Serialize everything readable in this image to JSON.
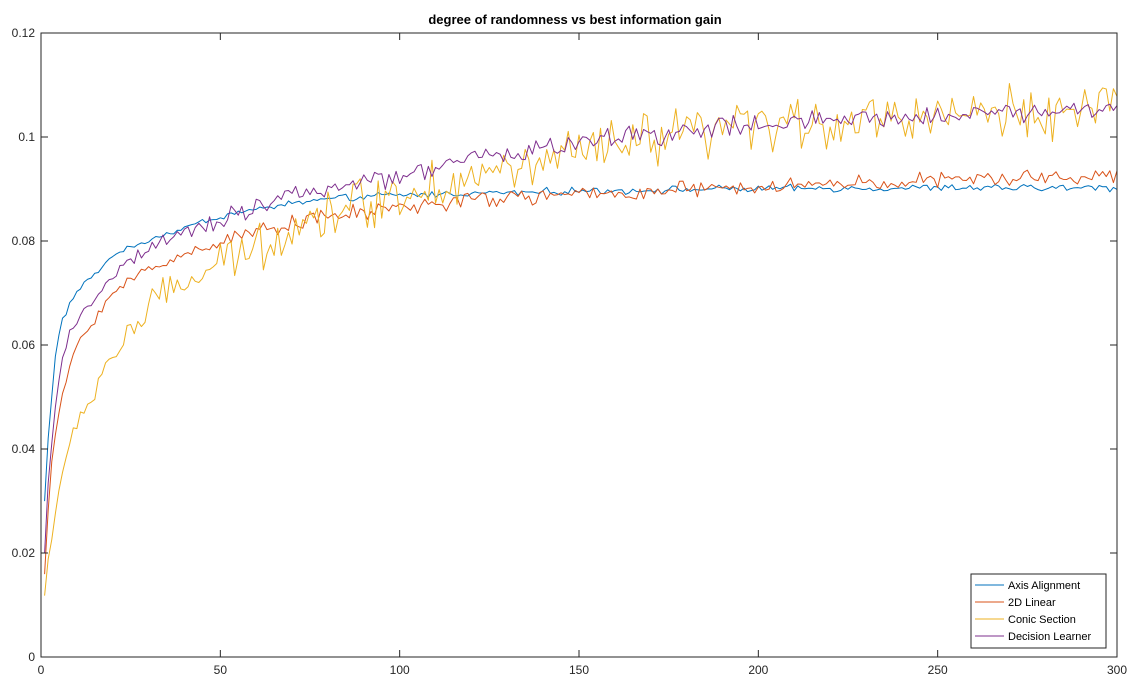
{
  "chart_data": {
    "type": "line",
    "title": "degree of randomness vs best information gain",
    "xlabel": "",
    "ylabel": "",
    "xlim": [
      0,
      300
    ],
    "ylim": [
      0,
      0.12
    ],
    "xticks": [
      0,
      50,
      100,
      150,
      200,
      250,
      300
    ],
    "yticks": [
      0,
      0.02,
      0.04,
      0.06,
      0.08,
      0.1,
      0.12
    ],
    "xtick_labels": [
      "0",
      "50",
      "100",
      "150",
      "200",
      "250",
      "300"
    ],
    "ytick_labels": [
      "0",
      "0.02",
      "0.04",
      "0.06",
      "0.08",
      "0.1",
      "0.12"
    ],
    "grid": false,
    "legend_position": "bottom-right",
    "series": [
      {
        "name": "Axis Alignment",
        "color": "#0072BD",
        "x": [
          1,
          2,
          3,
          4,
          5,
          6,
          7,
          8,
          9,
          10,
          12,
          14,
          16,
          18,
          20,
          22,
          24,
          26,
          28,
          30,
          32,
          34,
          36,
          38,
          40,
          42,
          44,
          46,
          48,
          50,
          55,
          60,
          65,
          70,
          75,
          80,
          85,
          90,
          95,
          100,
          110,
          120,
          130,
          140,
          150,
          160,
          170,
          180,
          190,
          200,
          210,
          220,
          230,
          240,
          250,
          260,
          270,
          280,
          290,
          300
        ],
        "y": [
          0.03,
          0.042,
          0.05,
          0.058,
          0.062,
          0.065,
          0.066,
          0.068,
          0.069,
          0.07,
          0.072,
          0.073,
          0.074,
          0.076,
          0.077,
          0.078,
          0.0785,
          0.079,
          0.0795,
          0.08,
          0.081,
          0.081,
          0.0815,
          0.082,
          0.0825,
          0.083,
          0.0835,
          0.084,
          0.0843,
          0.0846,
          0.0855,
          0.086,
          0.0867,
          0.0872,
          0.0877,
          0.088,
          0.0882,
          0.0885,
          0.0887,
          0.0888,
          0.089,
          0.0892,
          0.0893,
          0.0895,
          0.0896,
          0.0897,
          0.0898,
          0.0899,
          0.09,
          0.09,
          0.0901,
          0.0901,
          0.0901,
          0.0902,
          0.0902,
          0.0902,
          0.0902,
          0.0902,
          0.0902,
          0.0902
        ],
        "jitter": 0.0006
      },
      {
        "name": "2D Linear",
        "color": "#D95319",
        "x": [
          1,
          2,
          3,
          4,
          5,
          6,
          7,
          8,
          9,
          10,
          12,
          14,
          16,
          18,
          20,
          22,
          24,
          26,
          28,
          30,
          32,
          34,
          36,
          38,
          40,
          42,
          44,
          46,
          48,
          50,
          55,
          60,
          65,
          70,
          75,
          80,
          85,
          90,
          95,
          100,
          110,
          120,
          130,
          140,
          150,
          160,
          170,
          180,
          190,
          200,
          210,
          220,
          230,
          240,
          250,
          260,
          270,
          280,
          290,
          300
        ],
        "y": [
          0.016,
          0.028,
          0.037,
          0.043,
          0.047,
          0.05,
          0.053,
          0.056,
          0.058,
          0.06,
          0.062,
          0.064,
          0.066,
          0.068,
          0.07,
          0.071,
          0.072,
          0.073,
          0.074,
          0.0745,
          0.075,
          0.0755,
          0.076,
          0.077,
          0.0775,
          0.078,
          0.0785,
          0.079,
          0.0795,
          0.08,
          0.081,
          0.082,
          0.0828,
          0.0835,
          0.084,
          0.0845,
          0.085,
          0.0855,
          0.086,
          0.0865,
          0.0872,
          0.0878,
          0.0882,
          0.0886,
          0.0889,
          0.0892,
          0.0895,
          0.0898,
          0.09,
          0.0903,
          0.0906,
          0.0909,
          0.0912,
          0.0914,
          0.0916,
          0.0918,
          0.092,
          0.0922,
          0.0924,
          0.0925
        ],
        "jitter": 0.0014
      },
      {
        "name": "Conic Section",
        "color": "#EDB120",
        "x": [
          1,
          2,
          3,
          4,
          5,
          6,
          7,
          8,
          9,
          10,
          12,
          14,
          16,
          18,
          20,
          22,
          24,
          26,
          28,
          30,
          32,
          34,
          36,
          38,
          40,
          42,
          44,
          46,
          48,
          50,
          55,
          60,
          65,
          70,
          75,
          80,
          85,
          90,
          95,
          100,
          110,
          120,
          130,
          140,
          150,
          160,
          170,
          180,
          190,
          200,
          210,
          220,
          230,
          240,
          250,
          260,
          270,
          280,
          290,
          300
        ],
        "y": [
          0.012,
          0.018,
          0.024,
          0.028,
          0.032,
          0.035,
          0.038,
          0.04,
          0.042,
          0.044,
          0.047,
          0.05,
          0.053,
          0.056,
          0.058,
          0.06,
          0.062,
          0.064,
          0.065,
          0.067,
          0.068,
          0.069,
          0.07,
          0.071,
          0.072,
          0.073,
          0.0735,
          0.074,
          0.0745,
          0.075,
          0.077,
          0.079,
          0.081,
          0.0825,
          0.084,
          0.0855,
          0.0865,
          0.0875,
          0.0885,
          0.089,
          0.0905,
          0.092,
          0.0935,
          0.095,
          0.0965,
          0.098,
          0.0992,
          0.1,
          0.101,
          0.102,
          0.1025,
          0.103,
          0.1035,
          0.104,
          0.1042,
          0.1045,
          0.1048,
          0.105,
          0.1052,
          0.1055
        ],
        "jitter": 0.0045
      },
      {
        "name": "Decision Learner",
        "color": "#7E2F8E",
        "x": [
          1,
          2,
          3,
          4,
          5,
          6,
          7,
          8,
          9,
          10,
          12,
          14,
          16,
          18,
          20,
          22,
          24,
          26,
          28,
          30,
          32,
          34,
          36,
          38,
          40,
          42,
          44,
          46,
          48,
          50,
          55,
          60,
          65,
          70,
          75,
          80,
          85,
          90,
          95,
          100,
          110,
          120,
          130,
          140,
          150,
          160,
          170,
          180,
          190,
          200,
          210,
          220,
          230,
          240,
          250,
          260,
          270,
          280,
          290,
          300
        ],
        "y": [
          0.02,
          0.033,
          0.041,
          0.048,
          0.053,
          0.057,
          0.06,
          0.062,
          0.063,
          0.064,
          0.066,
          0.068,
          0.07,
          0.072,
          0.073,
          0.075,
          0.076,
          0.0765,
          0.077,
          0.078,
          0.079,
          0.0795,
          0.08,
          0.081,
          0.0815,
          0.082,
          0.0825,
          0.083,
          0.0835,
          0.084,
          0.0855,
          0.087,
          0.088,
          0.0885,
          0.089,
          0.0898,
          0.0905,
          0.0912,
          0.092,
          0.0925,
          0.094,
          0.0955,
          0.097,
          0.098,
          0.099,
          0.0998,
          0.1005,
          0.1012,
          0.1018,
          0.1022,
          0.1026,
          0.103,
          0.1035,
          0.1038,
          0.1042,
          0.1045,
          0.1048,
          0.105,
          0.1052,
          0.1055
        ],
        "jitter": 0.0018
      }
    ]
  }
}
